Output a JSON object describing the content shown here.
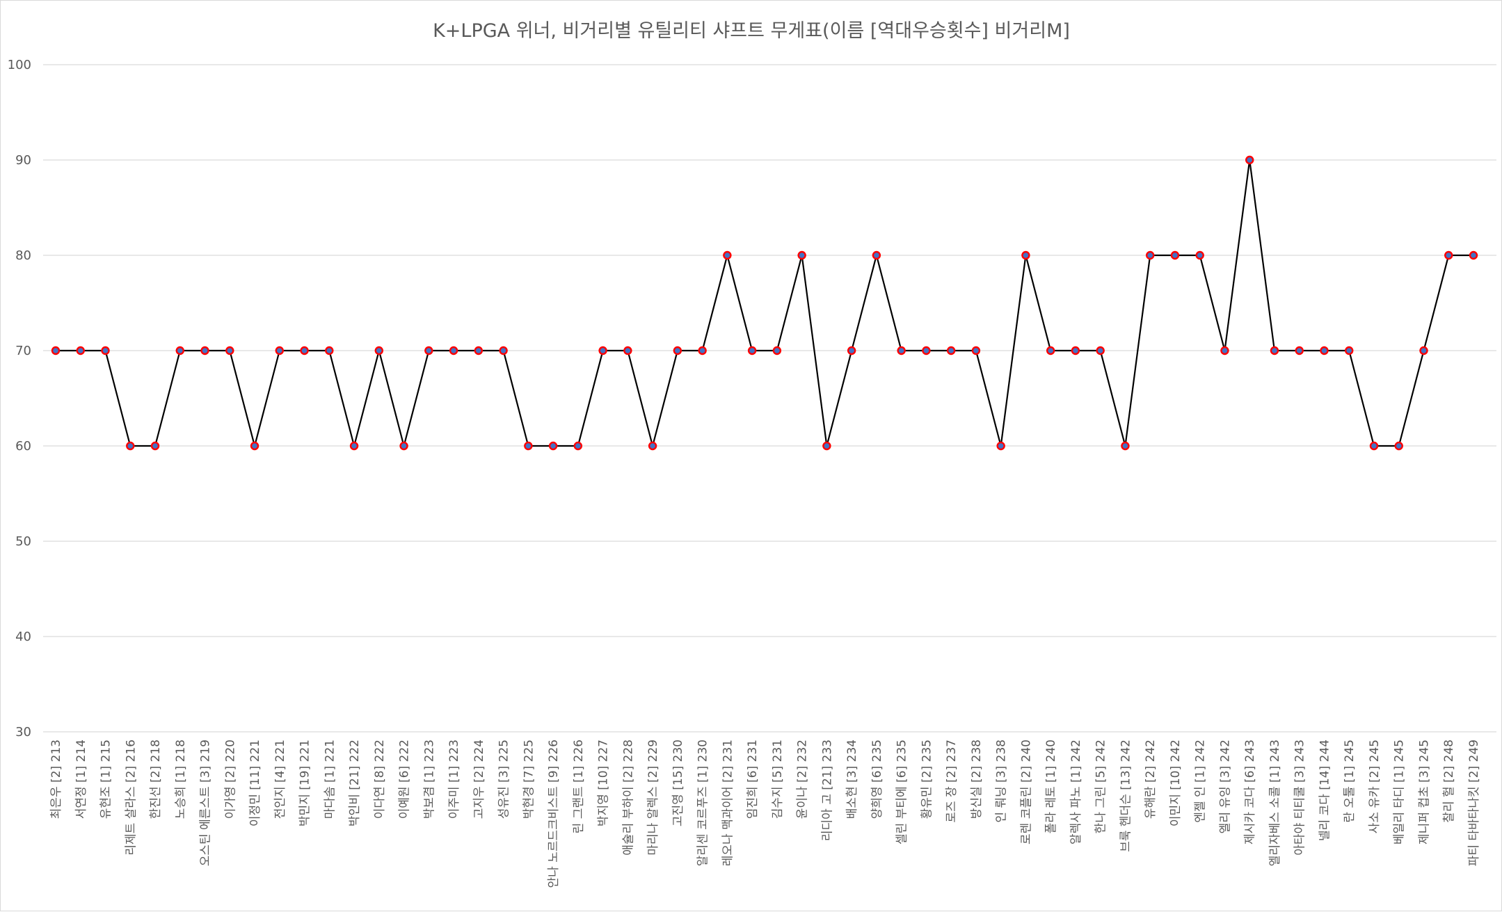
{
  "chart_data": {
    "type": "line",
    "title": "K+LPGA 위너, 비거리별 유틸리티 샤프트 무게표(이름 [역대우승횟수] 비거리M]",
    "xlabel": "",
    "ylabel": "",
    "ylim": [
      30,
      100
    ],
    "yticks": [
      30,
      40,
      50,
      60,
      70,
      80,
      90,
      100
    ],
    "grid": true,
    "legend": "none",
    "colors": {
      "line": "#000000",
      "marker_fill": "#4472c4",
      "marker_edge": "#ff0000",
      "grid": "#d9d9d9",
      "text": "#595959"
    },
    "categories": [
      "최은우 [2] 213",
      "서연정 [1] 214",
      "유현조 [1] 215",
      "리제트 살라스 [2] 216",
      "한진선 [2] 218",
      "노승희 [1] 218",
      "오스틴 에른스트 [3] 219",
      "이가영 [2] 220",
      "이정민 [11] 221",
      "전인지 [4] 221",
      "박민지 [19] 221",
      "마다솜 [1] 221",
      "박인비 [21] 222",
      "이다연 [8] 222",
      "이예원 [6] 222",
      "박보겸 [1] 223",
      "이주미 [1] 223",
      "고지우 [2] 224",
      "성유진 [3] 225",
      "박현경 [7] 225",
      "안나 노르드크비스트 [9] 226",
      "린 그랜트 [1] 226",
      "박지영 [10] 227",
      "애슐리 부하이 [2] 228",
      "마리나 알렉스 [2] 229",
      "고진영 [15] 230",
      "알리센 코르푸즈 [1] 230",
      "레오나 맥과이어 [2] 231",
      "임진희 [6] 231",
      "김수지 [5] 231",
      "윤이나 [2] 232",
      "리디아 고 [21] 233",
      "배소현 [3] 234",
      "양희영 [6] 235",
      "셀린 부티에 [6] 235",
      "황유민 [2] 235",
      "로즈 장 [2] 237",
      "방신실 [2] 238",
      "인 뤄닝 [3] 238",
      "로렌 코플린 [2] 240",
      "폴라 레토 [1] 240",
      "알렉사 파노 [1] 242",
      "한나 그린 [5] 242",
      "브룩 헨더슨 [13] 242",
      "유해란 [2] 242",
      "이민지 [10] 242",
      "엔젤 인 [1] 242",
      "엘리 유잉 [3] 242",
      "제시카 코다 [6] 243",
      "엘리자베스 소콜 [1] 243",
      "아타야 티티쿨 [3] 243",
      "넬리 코다 [14] 244",
      "란 오툴 [1] 245",
      "사소 유카 [2] 245",
      "베일리 타디 [1] 245",
      "제니퍼 컵초 [3] 245",
      "찰리 헐 [2] 248",
      "파티 타바타나킷 [2] 249"
    ],
    "values": [
      70,
      70,
      70,
      60,
      60,
      70,
      70,
      70,
      60,
      70,
      70,
      70,
      60,
      70,
      60,
      70,
      70,
      70,
      70,
      60,
      60,
      60,
      70,
      70,
      60,
      70,
      70,
      80,
      70,
      70,
      80,
      60,
      70,
      80,
      70,
      70,
      70,
      70,
      60,
      80,
      70,
      70,
      70,
      60,
      80,
      80,
      80,
      70,
      90,
      70,
      70,
      70,
      70,
      60,
      60,
      70,
      80,
      80
    ]
  }
}
